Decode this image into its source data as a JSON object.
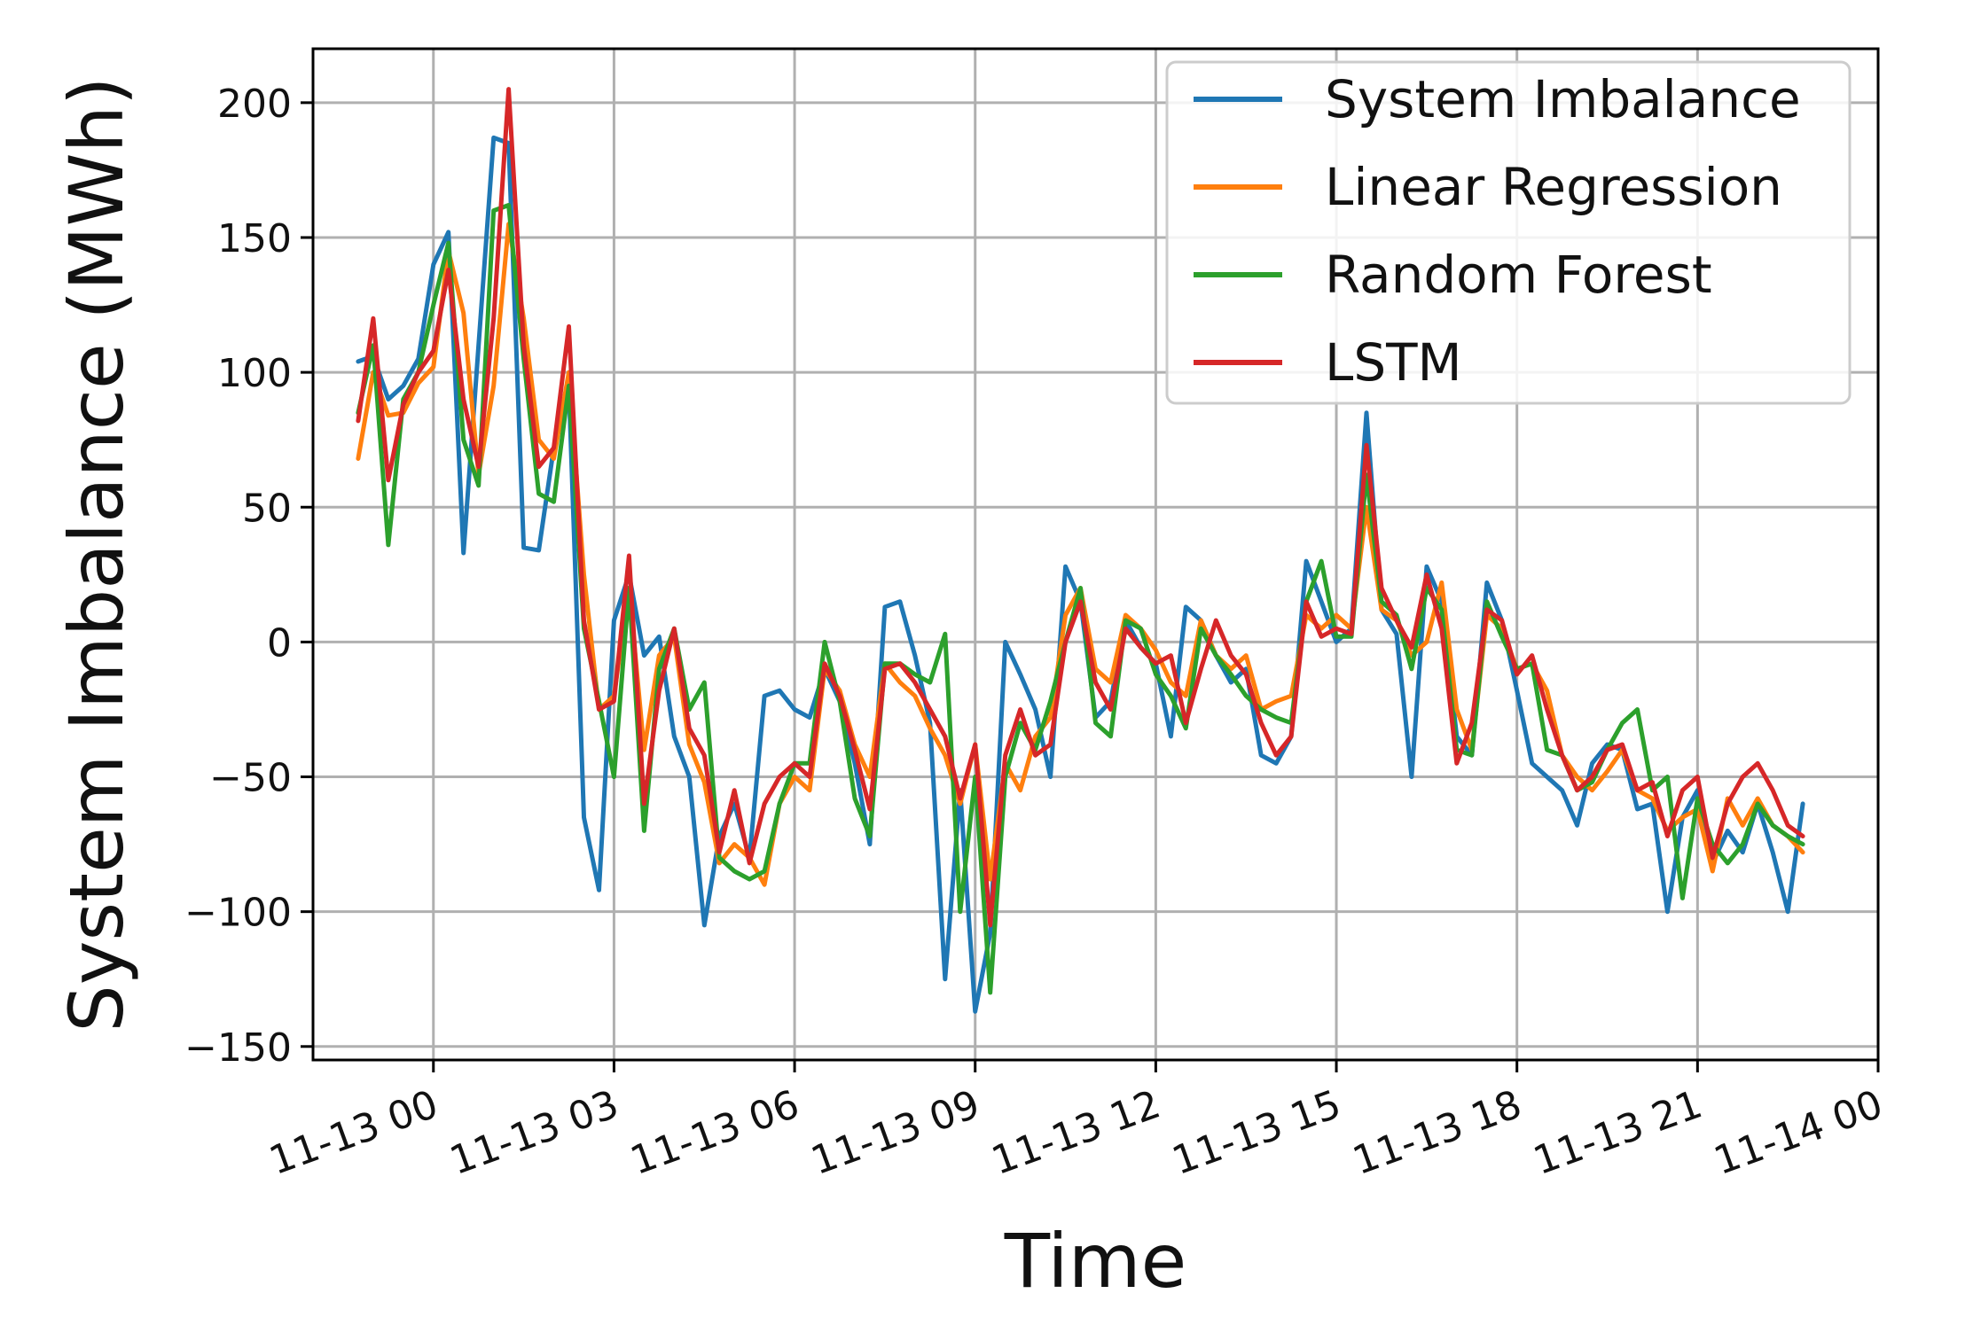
{
  "chart_data": {
    "type": "line",
    "title": "",
    "xlabel": "Time",
    "ylabel": "System Imbalance (MWh)",
    "x_start": "2019-11-12 22:45",
    "x_step_minutes": 15,
    "xlim": [
      "2019-11-12 22:00",
      "2019-11-14 00:00"
    ],
    "ylim": [
      -155,
      220
    ],
    "yticks": [
      -150,
      -100,
      -50,
      0,
      50,
      100,
      150,
      200
    ],
    "yticklabels": [
      "−150",
      "−100",
      "−50",
      "0",
      "50",
      "100",
      "150",
      "200"
    ],
    "xticks": [
      "2019-11-13 00:00",
      "2019-11-13 03:00",
      "2019-11-13 06:00",
      "2019-11-13 09:00",
      "2019-11-13 12:00",
      "2019-11-13 15:00",
      "2019-11-13 18:00",
      "2019-11-13 21:00",
      "2019-11-14 00:00"
    ],
    "xticklabels": [
      "11-13 00",
      "11-13 03",
      "11-13 06",
      "11-13 09",
      "11-13 12",
      "11-13 15",
      "11-13 18",
      "11-13 21",
      "11-14 00"
    ],
    "grid": true,
    "legend_position": "top-right",
    "series": [
      {
        "name": "System Imbalance",
        "color": "#1f77b4",
        "values": [
          104,
          106,
          90,
          95,
          105,
          140,
          152,
          33,
          110,
          187,
          185,
          35,
          34,
          72,
          95,
          -65,
          -92,
          8,
          25,
          -5,
          2,
          -35,
          -50,
          -105,
          -72,
          -60,
          -80,
          -20,
          -18,
          -25,
          -28,
          -10,
          -22,
          -45,
          -75,
          13,
          15,
          -5,
          -30,
          -125,
          -55,
          -137,
          -108,
          0,
          -12,
          -25,
          -50,
          28,
          15,
          -28,
          -22,
          8,
          -2,
          -8,
          -35,
          13,
          8,
          -5,
          -15,
          -10,
          -42,
          -45,
          -35,
          30,
          15,
          0,
          5,
          85,
          12,
          3,
          -50,
          28,
          15,
          -35,
          -42,
          22,
          8,
          -18,
          -45,
          -50,
          -55,
          -68,
          -45,
          -38,
          -40,
          -62,
          -60,
          -100,
          -65,
          -55,
          -82,
          -70,
          -78,
          -60,
          -78,
          -100,
          -60
        ]
      },
      {
        "name": "Linear Regression",
        "color": "#ff7f0e",
        "values": [
          68,
          100,
          84,
          85,
          96,
          102,
          145,
          122,
          62,
          95,
          155,
          120,
          75,
          68,
          100,
          25,
          -25,
          -20,
          20,
          -40,
          -5,
          2,
          -38,
          -52,
          -82,
          -75,
          -80,
          -90,
          -60,
          -50,
          -55,
          -10,
          -18,
          -38,
          -50,
          -8,
          -15,
          -20,
          -32,
          -42,
          -60,
          -38,
          -88,
          -45,
          -55,
          -35,
          -28,
          10,
          20,
          -10,
          -15,
          10,
          5,
          -3,
          -15,
          -20,
          8,
          -5,
          -10,
          -5,
          -25,
          -22,
          -20,
          10,
          5,
          10,
          5,
          50,
          12,
          8,
          -5,
          0,
          22,
          -25,
          -40,
          10,
          5,
          -10,
          -8,
          -18,
          -42,
          -50,
          -55,
          -48,
          -40,
          -55,
          -58,
          -70,
          -65,
          -62,
          -85,
          -58,
          -68,
          -58,
          -68,
          -72,
          -78
        ]
      },
      {
        "name": "Random Forest",
        "color": "#2ca02c",
        "values": [
          85,
          110,
          36,
          90,
          100,
          125,
          148,
          75,
          58,
          160,
          162,
          105,
          55,
          52,
          95,
          5,
          -22,
          -50,
          20,
          -70,
          -10,
          5,
          -25,
          -15,
          -80,
          -85,
          -88,
          -85,
          -60,
          -45,
          -45,
          0,
          -22,
          -58,
          -72,
          -8,
          -8,
          -12,
          -15,
          3,
          -100,
          -50,
          -130,
          -50,
          -30,
          -40,
          -22,
          0,
          20,
          -30,
          -35,
          8,
          5,
          -12,
          -20,
          -32,
          5,
          -5,
          -12,
          -20,
          -25,
          -28,
          -30,
          15,
          30,
          2,
          2,
          62,
          15,
          10,
          -10,
          20,
          12,
          -40,
          -42,
          15,
          2,
          -10,
          -8,
          -40,
          -42,
          -55,
          -52,
          -40,
          -30,
          -25,
          -55,
          -50,
          -95,
          -58,
          -75,
          -82,
          -75,
          -60,
          -68,
          -72,
          -75
        ]
      },
      {
        "name": "LSTM",
        "color": "#d62728",
        "values": [
          82,
          120,
          60,
          88,
          100,
          108,
          138,
          90,
          65,
          120,
          205,
          110,
          65,
          72,
          117,
          8,
          -25,
          -22,
          32,
          -60,
          -18,
          5,
          -32,
          -42,
          -78,
          -55,
          -82,
          -60,
          -50,
          -45,
          -50,
          -8,
          -20,
          -40,
          -62,
          -10,
          -8,
          -15,
          -25,
          -35,
          -58,
          -38,
          -105,
          -42,
          -25,
          -42,
          -38,
          0,
          15,
          -15,
          -25,
          5,
          -2,
          -8,
          -5,
          -30,
          -10,
          8,
          -5,
          -12,
          -30,
          -42,
          -35,
          15,
          2,
          5,
          3,
          73,
          20,
          8,
          -2,
          25,
          5,
          -45,
          -30,
          12,
          8,
          -12,
          -5,
          -25,
          -42,
          -55,
          -50,
          -40,
          -38,
          -55,
          -52,
          -72,
          -55,
          -50,
          -80,
          -60,
          -50,
          -45,
          -55,
          -68,
          -72
        ]
      }
    ]
  }
}
